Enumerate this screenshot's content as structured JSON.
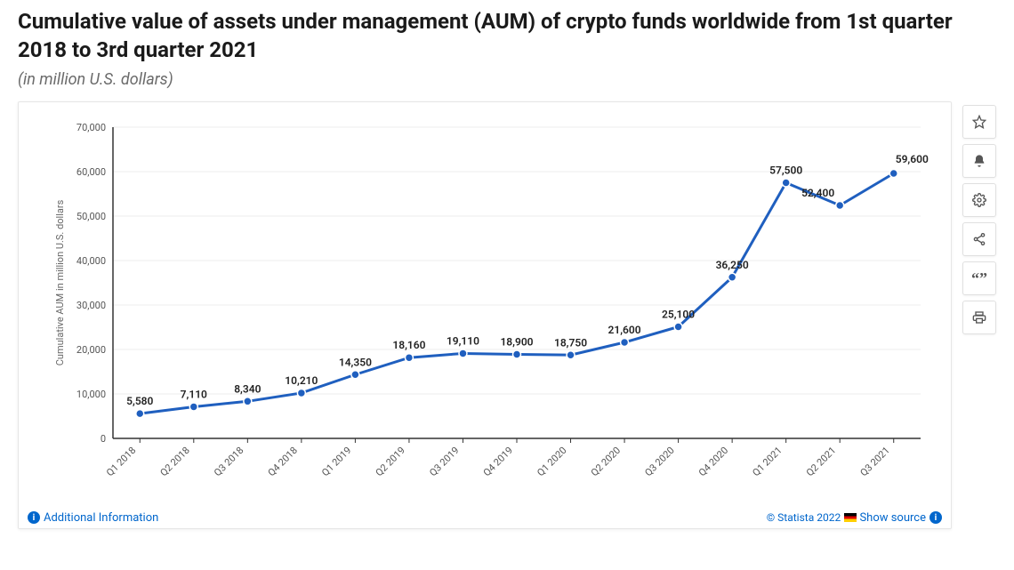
{
  "title": "Cumulative value of assets under management (AUM) of crypto funds worldwide from 1st quarter 2018 to 3rd quarter 2021",
  "subtitle": "(in million U.S. dollars)",
  "chart": {
    "type": "line",
    "y_axis_title": "Cumulative AUM in million U.S. dollars",
    "ylim": [
      0,
      70000
    ],
    "ytick_step": 10000,
    "yticks": [
      "0",
      "10,000",
      "20,000",
      "30,000",
      "40,000",
      "50,000",
      "60,000",
      "70,000"
    ],
    "categories": [
      "Q1 2018",
      "Q2 2018",
      "Q3 2018",
      "Q4 2018",
      "Q1 2019",
      "Q2 2019",
      "Q3 2019",
      "Q4 2019",
      "Q1 2020",
      "Q2 2020",
      "Q3 2020",
      "Q4 2020",
      "Q1 2021",
      "Q2 2021",
      "Q3 2021"
    ],
    "values": [
      5580,
      7110,
      8340,
      10210,
      14350,
      18160,
      19110,
      18900,
      18750,
      21600,
      25100,
      36250,
      57500,
      52400,
      59600
    ],
    "value_labels": [
      "5,580",
      "7,110",
      "8,340",
      "10,210",
      "14,350",
      "18,160",
      "19,110",
      "18,900",
      "18,750",
      "21,600",
      "25,100",
      "36,250",
      "57,500",
      "52,400",
      "59,600"
    ],
    "line_color": "#1f5fbf",
    "marker_color": "#1f5fbf",
    "marker_radius": 4.5,
    "line_width": 3,
    "grid_color": "#ededed",
    "axis_color": "#333333",
    "background_color": "#ffffff",
    "label_fontsize": 12,
    "tick_fontsize": 11
  },
  "toolbar": {
    "items": [
      {
        "name": "favorite-button",
        "icon": "star"
      },
      {
        "name": "notify-button",
        "icon": "bell"
      },
      {
        "name": "settings-button",
        "icon": "gear"
      },
      {
        "name": "share-button",
        "icon": "share"
      },
      {
        "name": "cite-button",
        "icon": "quote"
      },
      {
        "name": "print-button",
        "icon": "print"
      }
    ]
  },
  "footer": {
    "additional_info": "Additional Information",
    "copyright": "© Statista 2022",
    "show_source": "Show source"
  }
}
